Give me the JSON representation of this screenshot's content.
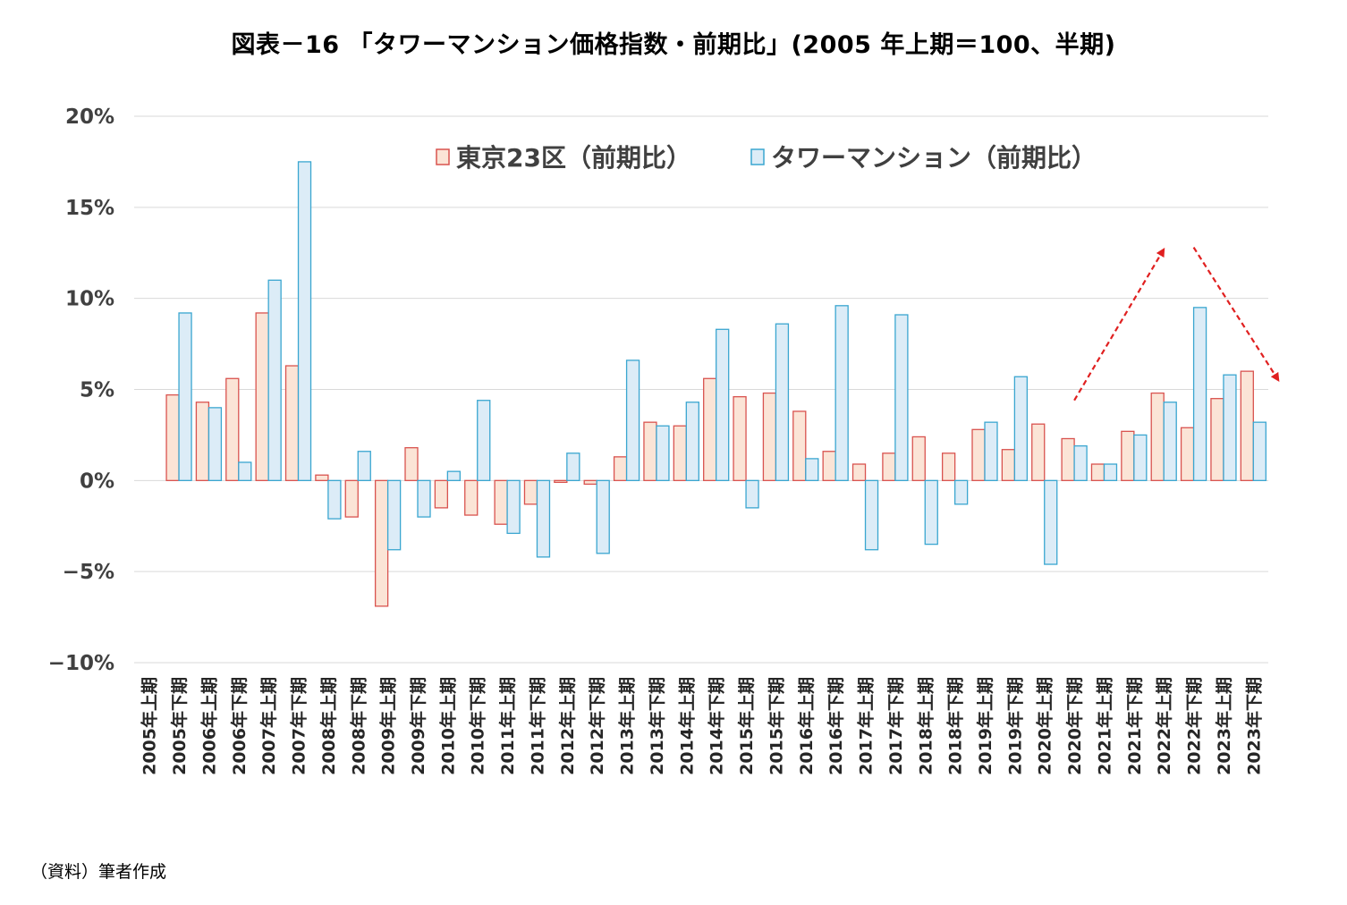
{
  "title": "図表－16 「タワーマンション価格指数・前期比」(2005 年上期＝100、半期)",
  "source_note": "（資料）筆者作成",
  "colors": {
    "tokyo_fill": "#fbe4d6",
    "tokyo_stroke": "#d9534f",
    "tower_fill": "#dcecf7",
    "tower_stroke": "#3aa6d0",
    "grid": "#d9d9d9",
    "arrow": "#e02020"
  },
  "chart_data": {
    "type": "bar",
    "title": "図表－16 「タワーマンション価格指数・前期比」(2005 年上期＝100、半期)",
    "ylim": [
      -10,
      20
    ],
    "yticks": [
      {
        "value": 20,
        "label": "20%"
      },
      {
        "value": 15,
        "label": "15%"
      },
      {
        "value": 10,
        "label": "10%"
      },
      {
        "value": 5,
        "label": "5%"
      },
      {
        "value": 0,
        "label": "0%"
      },
      {
        "value": -5,
        "label": "−5%"
      },
      {
        "value": -10,
        "label": "−10%"
      }
    ],
    "grid": true,
    "legend_position": "top-center",
    "categories": [
      "2005年上期",
      "2005年下期",
      "2006年上期",
      "2006年下期",
      "2007年上期",
      "2007年下期",
      "2008年上期",
      "2008年下期",
      "2009年上期",
      "2009年下期",
      "2010年上期",
      "2010年下期",
      "2011年上期",
      "2011年下期",
      "2012年上期",
      "2012年下期",
      "2013年上期",
      "2013年下期",
      "2014年上期",
      "2014年下期",
      "2015年上期",
      "2015年下期",
      "2016年上期",
      "2016年下期",
      "2017年上期",
      "2017年下期",
      "2018年上期",
      "2018年下期",
      "2019年上期",
      "2019年下期",
      "2020年上期",
      "2020年下期",
      "2021年上期",
      "2021年下期",
      "2022年上期",
      "2022年下期",
      "2023年上期",
      "2023年下期"
    ],
    "series": [
      {
        "name": "東京23区（前期比）",
        "values": [
          null,
          4.7,
          4.3,
          5.6,
          9.2,
          6.3,
          0.3,
          -2.0,
          -6.9,
          1.8,
          -1.5,
          -1.9,
          -2.4,
          -1.3,
          -0.1,
          -0.2,
          1.3,
          3.2,
          3.0,
          5.6,
          4.6,
          4.8,
          3.8,
          1.6,
          0.9,
          1.5,
          2.4,
          1.5,
          2.8,
          1.7,
          3.1,
          2.3,
          0.9,
          2.7,
          4.8,
          2.9,
          4.5,
          6.0
        ]
      },
      {
        "name": "タワーマンション（前期比）",
        "values": [
          null,
          9.2,
          4.0,
          1.0,
          11.0,
          17.5,
          -2.1,
          1.6,
          -3.8,
          -2.0,
          0.5,
          4.4,
          -2.9,
          -4.2,
          1.5,
          -4.0,
          6.6,
          3.0,
          4.3,
          8.3,
          -1.5,
          8.6,
          1.2,
          9.6,
          -3.8,
          9.1,
          -3.5,
          -1.3,
          3.2,
          5.7,
          -4.6,
          1.9,
          0.9,
          2.5,
          4.3,
          9.5,
          5.8,
          3.2
        ]
      }
    ],
    "annotations": [
      {
        "type": "arrow",
        "from": {
          "x": "2020年下期",
          "y": 4.4
        },
        "to": {
          "x": "2022年上期",
          "y": 12.7
        }
      },
      {
        "type": "arrow",
        "from": {
          "x": "2022年下期",
          "y": 12.8
        },
        "to": {
          "x": "2023年下期",
          "y": 5.5
        }
      }
    ]
  }
}
